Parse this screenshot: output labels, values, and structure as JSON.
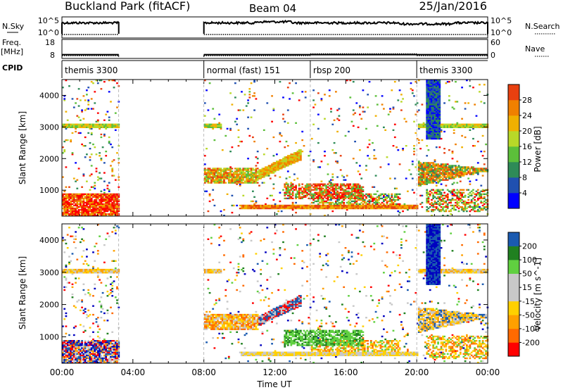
{
  "header": {
    "station": "Buckland Park (fitACF)",
    "beam": "Beam 04",
    "date": "25/Jan/2016"
  },
  "side_labels": {
    "nsky": "N.Sky",
    "nsearch": "N.Search",
    "freq_line1": "Freq.",
    "freq_line2": "[MHz]",
    "nave": "Nave",
    "cpid": "CPID"
  },
  "colors": {
    "power_scale": [
      "#0000ff",
      "#2050b0",
      "#2e8b57",
      "#5cbf3a",
      "#b8d828",
      "#f0b000",
      "#f08000",
      "#e84010",
      "#ff0000"
    ],
    "velocity_scale": [
      "#ff0000",
      "#ff6a00",
      "#ffa000",
      "#ffd000",
      "#c8c8c8",
      "#c8c8c8",
      "#60d040",
      "#208020",
      "#1a5ab0",
      "#0000c0"
    ],
    "nsky_line": "#000000"
  },
  "chart_data": [
    {
      "type": "line",
      "panel": "nsky-nsearch",
      "yticks_left": [
        "10^5",
        "10^0"
      ],
      "yticks_right": [
        "10^5",
        "10^0"
      ],
      "segments_hours": [
        [
          0.0,
          3.2
        ],
        [
          8.0,
          24.0
        ]
      ],
      "nsky_level": "~10^4",
      "nsearch_level": "~10^0"
    },
    {
      "type": "line",
      "panel": "freq-nave",
      "yticks_left": [
        18,
        8
      ],
      "yticks_right": [
        60,
        0
      ],
      "freq_mhz": 10.0,
      "nave": [
        {
          "start_hour": 0.0,
          "end_hour": 3.2,
          "value": 7
        },
        {
          "start_hour": 8.0,
          "end_hour": 14.0,
          "value": 7
        },
        {
          "start_hour": 14.0,
          "end_hour": 20.0,
          "value": 16
        },
        {
          "start_hour": 20.0,
          "end_hour": 24.0,
          "value": 7
        }
      ]
    },
    {
      "type": "table",
      "panel": "cpid",
      "modes": [
        {
          "start_hour": 0.0,
          "label": "themis 3300"
        },
        {
          "start_hour": 8.0,
          "label": "normal (fast) 151"
        },
        {
          "start_hour": 14.0,
          "label": "rbsp 200"
        },
        {
          "start_hour": 20.0,
          "label": "themis 3300"
        }
      ]
    },
    {
      "type": "heatmap",
      "panel": "power",
      "ylabel": "Slant Range [km]",
      "yticks": [
        1000,
        2000,
        3000,
        4000
      ],
      "ylim": [
        180,
        4500
      ],
      "xlim_hours": [
        0,
        24
      ],
      "colorbar_label": "Power [dB]",
      "colorbar_ticks": [
        4,
        8,
        12,
        16,
        20,
        24,
        28
      ],
      "colorbar_range": [
        0,
        30
      ]
    },
    {
      "type": "heatmap",
      "panel": "velocity",
      "ylabel": "Slant Range [km]",
      "yticks": [
        1000,
        2000,
        3000,
        4000
      ],
      "ylim": [
        180,
        4500
      ],
      "xlim_hours": [
        0,
        24
      ],
      "xticks": [
        "00:00",
        "04:00",
        "08:00",
        "12:00",
        "16:00",
        "20:00",
        "00:00"
      ],
      "xlabel": "Time UT",
      "colorbar_label": "Velocity [m s^-1]",
      "colorbar_ticks": [
        -200,
        -100,
        -50,
        -15,
        15,
        50,
        100,
        200
      ]
    }
  ]
}
